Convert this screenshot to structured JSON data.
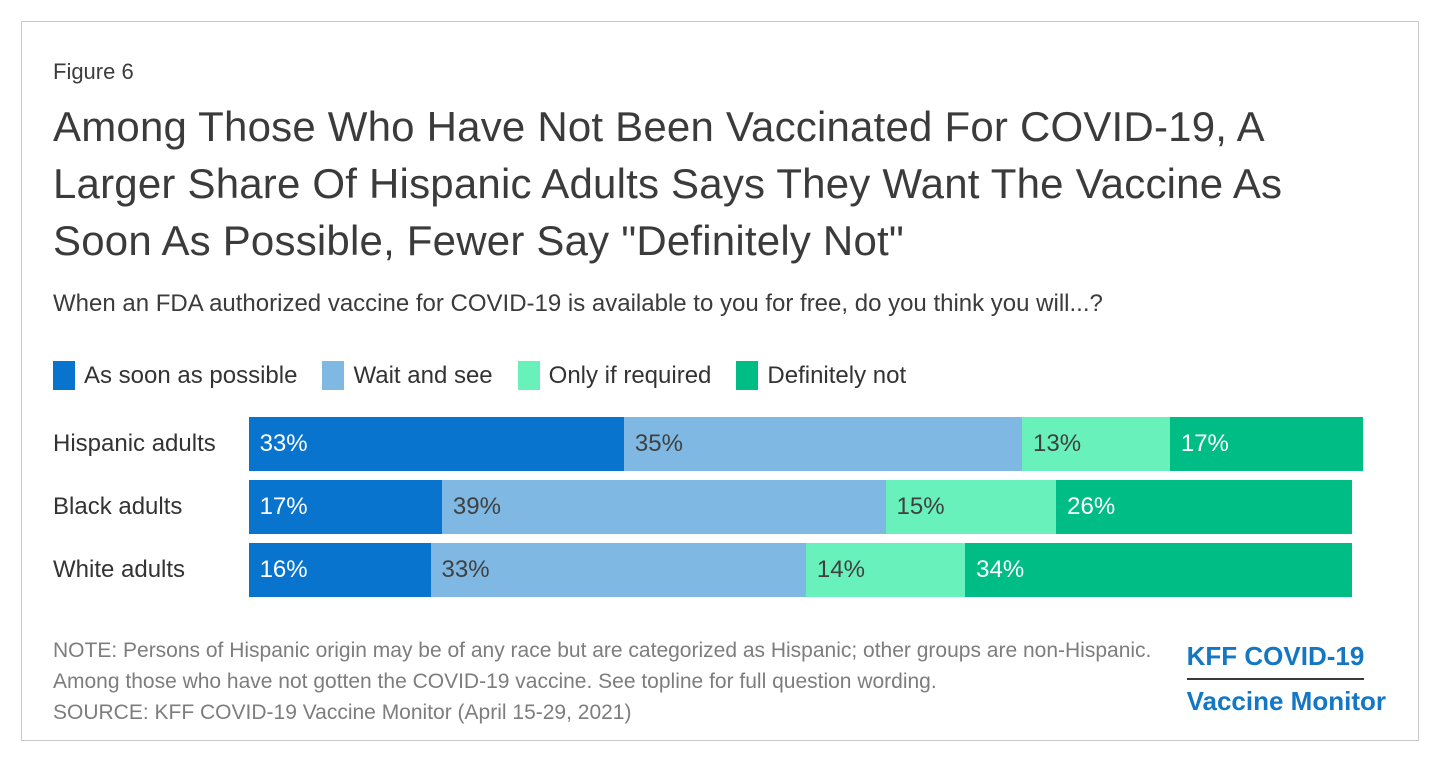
{
  "figure_label": "Figure 6",
  "title": "Among Those Who Have Not Been Vaccinated For COVID-19, A Larger Share Of Hispanic Adults Says They Want The Vaccine As Soon As Possible, Fewer Say \"Definitely Not\"",
  "subtitle": "When an FDA authorized vaccine for COVID-19 is available to you for free, do you think you will...?",
  "chart_data": {
    "type": "bar",
    "variant": "horizontal-stacked",
    "categories": [
      "Hispanic adults",
      "Black adults",
      "White adults"
    ],
    "series": [
      {
        "name": "As soon as possible",
        "color": "#0874CE",
        "label_color": "#ffffff",
        "values": [
          33,
          17,
          16
        ]
      },
      {
        "name": "Wait and see",
        "color": "#7FB9E3",
        "label_color": "#404040",
        "values": [
          35,
          39,
          33
        ]
      },
      {
        "name": "Only if required",
        "color": "#69F1BB",
        "label_color": "#404040",
        "values": [
          13,
          15,
          14
        ]
      },
      {
        "name": "Definitely not",
        "color": "#00BD86",
        "label_color": "#ffffff",
        "values": [
          17,
          26,
          34
        ]
      }
    ],
    "value_suffix": "%",
    "xlim": [
      0,
      100
    ],
    "legend_position": "top",
    "grid": false
  },
  "note": "NOTE: Persons of Hispanic origin may be of any race but are categorized as Hispanic; other groups are non-Hispanic. Among those who have not gotten the COVID-19 vaccine. See topline for full question wording.",
  "source": "SOURCE: KFF COVID-19 Vaccine Monitor (April 15-29, 2021)",
  "logo": {
    "line1": "KFF COVID-19",
    "line2": "Vaccine Monitor",
    "color": "#1377C4"
  }
}
